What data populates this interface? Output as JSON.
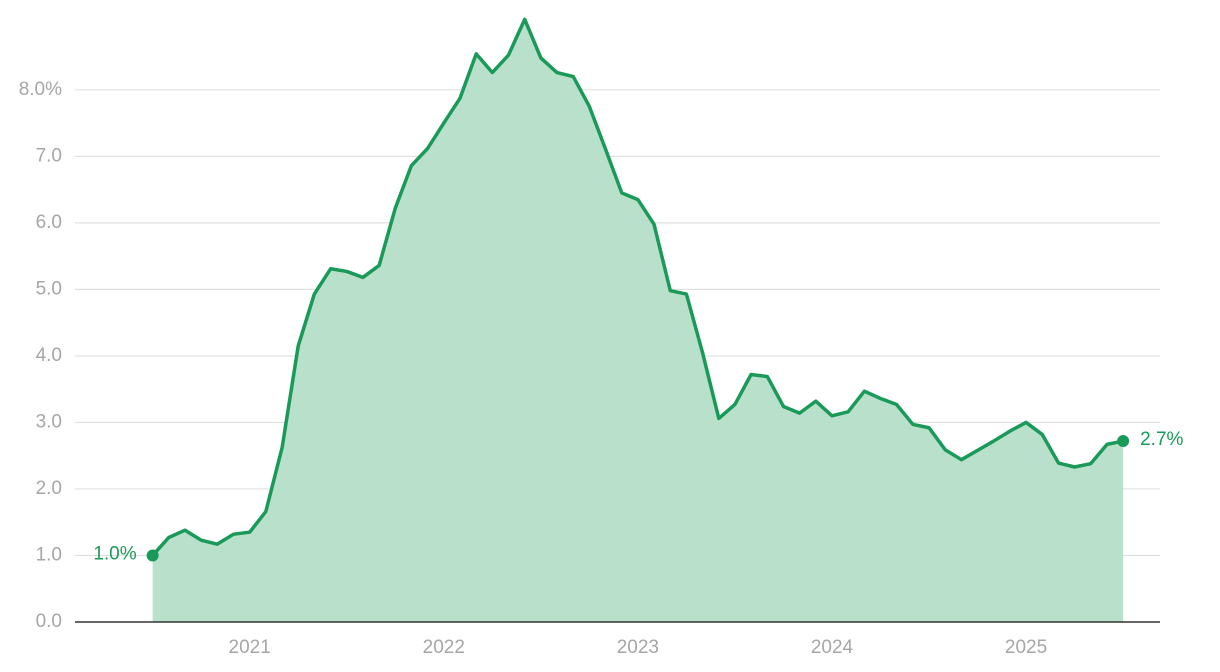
{
  "chart_data": {
    "type": "area",
    "x": [
      2020.5,
      2020.583,
      2020.667,
      2020.75,
      2020.833,
      2020.917,
      2021,
      2021.083,
      2021.167,
      2021.25,
      2021.333,
      2021.417,
      2021.5,
      2021.583,
      2021.667,
      2021.75,
      2021.833,
      2021.917,
      2022,
      2022.083,
      2022.167,
      2022.25,
      2022.333,
      2022.417,
      2022.5,
      2022.583,
      2022.667,
      2022.75,
      2022.833,
      2022.917,
      2023,
      2023.083,
      2023.167,
      2023.25,
      2023.333,
      2023.417,
      2023.5,
      2023.583,
      2023.667,
      2023.75,
      2023.833,
      2023.917,
      2024,
      2024.083,
      2024.167,
      2024.25,
      2024.333,
      2024.417,
      2024.5,
      2024.583,
      2024.667,
      2024.75,
      2024.833,
      2024.917,
      2025,
      2025.083,
      2025.167,
      2025.25,
      2025.333,
      2025.417,
      2025.5
    ],
    "series": [
      {
        "color": "#1a9a58",
        "fill": "#b9e0cb",
        "values": [
          1.0,
          1.27,
          1.38,
          1.23,
          1.17,
          1.32,
          1.35,
          1.66,
          2.62,
          4.15,
          4.93,
          5.31,
          5.27,
          5.18,
          5.36,
          6.22,
          6.86,
          7.12,
          7.5,
          7.87,
          8.54,
          8.26,
          8.52,
          9.06,
          8.48,
          8.26,
          8.2,
          7.75,
          7.11,
          6.45,
          6.35,
          5.98,
          4.98,
          4.93,
          4.05,
          3.06,
          3.27,
          3.72,
          3.69,
          3.24,
          3.14,
          3.32,
          3.1,
          3.16,
          3.47,
          3.36,
          3.27,
          2.97,
          2.92,
          2.59,
          2.44,
          2.58,
          2.72,
          2.87,
          3.0,
          2.82,
          2.39,
          2.33,
          2.38,
          2.67,
          2.72
        ]
      }
    ],
    "start_label": "1.0%",
    "end_label": "2.7%",
    "xlim": [
      2020.1,
      2025.69
    ],
    "xticks": [
      2021,
      2022,
      2023,
      2024,
      2025
    ],
    "ylim": [
      0,
      9.2
    ],
    "yticks": [
      {
        "value": 0,
        "label": "0.0"
      },
      {
        "value": 1,
        "label": "1.0"
      },
      {
        "value": 2,
        "label": "2.0"
      },
      {
        "value": 3,
        "label": "3.0"
      },
      {
        "value": 4,
        "label": "4.0"
      },
      {
        "value": 5,
        "label": "5.0"
      },
      {
        "value": 6,
        "label": "6.0"
      },
      {
        "value": 7,
        "label": "7.0"
      },
      {
        "value": 8,
        "label": "8.0%"
      }
    ],
    "grid": true
  }
}
